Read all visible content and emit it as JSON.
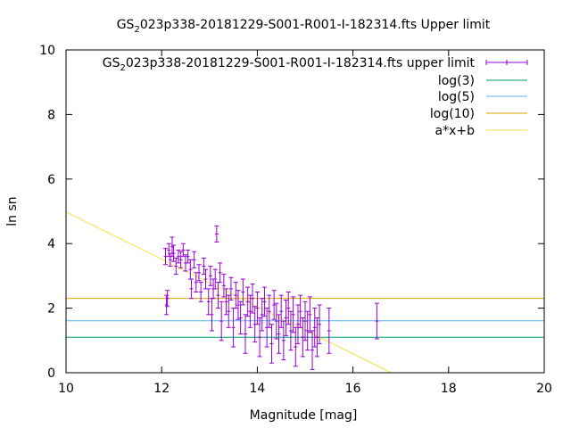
{
  "chart_data": {
    "type": "scatter",
    "title": {
      "main": "GS",
      "subscript": "2",
      "rest": "023p338-20181229-S001-R001-I-182314.fts Upper limit"
    },
    "xlabel": "Magnitude [mag]",
    "ylabel": "ln sn",
    "xlim": [
      10,
      20
    ],
    "ylim": [
      0,
      10
    ],
    "xticks": [
      10,
      12,
      14,
      16,
      18,
      20
    ],
    "yticks": [
      0,
      2,
      4,
      6,
      8,
      10
    ],
    "grid": false,
    "legend_position": "top-right",
    "series": [
      {
        "name": {
          "main": "GS",
          "subscript": "2",
          "rest": "023p338-20181229-S001-R001-I-182314.fts upper limit"
        },
        "style": "points-with-errorbars",
        "color": "#9400d3",
        "points": [
          {
            "x": 12.08,
            "y": 3.6,
            "err": 0.25
          },
          {
            "x": 12.1,
            "y": 2.1,
            "err": 0.3
          },
          {
            "x": 12.12,
            "y": 2.3,
            "err": 0.25
          },
          {
            "x": 12.15,
            "y": 3.8,
            "err": 0.2
          },
          {
            "x": 12.18,
            "y": 3.5,
            "err": 0.2
          },
          {
            "x": 12.22,
            "y": 3.9,
            "err": 0.3
          },
          {
            "x": 12.25,
            "y": 3.7,
            "err": 0.25
          },
          {
            "x": 12.3,
            "y": 3.3,
            "err": 0.25
          },
          {
            "x": 12.35,
            "y": 3.6,
            "err": 0.2
          },
          {
            "x": 12.4,
            "y": 3.5,
            "err": 0.25
          },
          {
            "x": 12.45,
            "y": 3.8,
            "err": 0.2
          },
          {
            "x": 12.5,
            "y": 3.4,
            "err": 0.25
          },
          {
            "x": 12.55,
            "y": 3.6,
            "err": 0.2
          },
          {
            "x": 12.6,
            "y": 3.2,
            "err": 0.3
          },
          {
            "x": 12.62,
            "y": 2.6,
            "err": 0.3
          },
          {
            "x": 12.68,
            "y": 3.5,
            "err": 0.25
          },
          {
            "x": 12.72,
            "y": 2.8,
            "err": 0.3
          },
          {
            "x": 12.78,
            "y": 3.1,
            "err": 0.25
          },
          {
            "x": 12.82,
            "y": 2.5,
            "err": 0.3
          },
          {
            "x": 12.88,
            "y": 3.3,
            "err": 0.25
          },
          {
            "x": 12.92,
            "y": 2.9,
            "err": 0.3
          },
          {
            "x": 12.98,
            "y": 2.2,
            "err": 0.4
          },
          {
            "x": 13.02,
            "y": 3.0,
            "err": 0.3
          },
          {
            "x": 13.05,
            "y": 1.8,
            "err": 0.5
          },
          {
            "x": 13.08,
            "y": 2.6,
            "err": 0.3
          },
          {
            "x": 13.12,
            "y": 2.9,
            "err": 0.3
          },
          {
            "x": 13.15,
            "y": 4.3,
            "err": 0.25
          },
          {
            "x": 13.18,
            "y": 2.4,
            "err": 0.4
          },
          {
            "x": 13.22,
            "y": 3.1,
            "err": 0.3
          },
          {
            "x": 13.25,
            "y": 1.6,
            "err": 0.6
          },
          {
            "x": 13.3,
            "y": 2.7,
            "err": 0.35
          },
          {
            "x": 13.35,
            "y": 2.2,
            "err": 0.4
          },
          {
            "x": 13.4,
            "y": 1.9,
            "err": 0.5
          },
          {
            "x": 13.45,
            "y": 2.6,
            "err": 0.35
          },
          {
            "x": 13.5,
            "y": 1.4,
            "err": 0.6
          },
          {
            "x": 13.55,
            "y": 2.4,
            "err": 0.4
          },
          {
            "x": 13.6,
            "y": 2.1,
            "err": 0.45
          },
          {
            "x": 13.65,
            "y": 1.7,
            "err": 0.5
          },
          {
            "x": 13.7,
            "y": 2.5,
            "err": 0.4
          },
          {
            "x": 13.75,
            "y": 1.2,
            "err": 0.6
          },
          {
            "x": 13.8,
            "y": 2.2,
            "err": 0.45
          },
          {
            "x": 13.85,
            "y": 1.9,
            "err": 0.5
          },
          {
            "x": 13.9,
            "y": 2.3,
            "err": 0.45
          },
          {
            "x": 13.95,
            "y": 1.5,
            "err": 0.55
          },
          {
            "x": 14.0,
            "y": 2.0,
            "err": 0.5
          },
          {
            "x": 14.05,
            "y": 1.1,
            "err": 0.6
          },
          {
            "x": 14.1,
            "y": 1.8,
            "err": 0.5
          },
          {
            "x": 14.15,
            "y": 2.2,
            "err": 0.45
          },
          {
            "x": 14.2,
            "y": 1.4,
            "err": 0.6
          },
          {
            "x": 14.25,
            "y": 1.9,
            "err": 0.5
          },
          {
            "x": 14.3,
            "y": 0.9,
            "err": 0.6
          },
          {
            "x": 14.35,
            "y": 2.1,
            "err": 0.45
          },
          {
            "x": 14.4,
            "y": 1.6,
            "err": 0.55
          },
          {
            "x": 14.45,
            "y": 1.2,
            "err": 0.6
          },
          {
            "x": 14.5,
            "y": 1.9,
            "err": 0.5
          },
          {
            "x": 14.55,
            "y": 1.0,
            "err": 0.6
          },
          {
            "x": 14.6,
            "y": 1.7,
            "err": 0.55
          },
          {
            "x": 14.65,
            "y": 2.0,
            "err": 0.5
          },
          {
            "x": 14.7,
            "y": 1.3,
            "err": 0.6
          },
          {
            "x": 14.75,
            "y": 1.8,
            "err": 0.55
          },
          {
            "x": 14.8,
            "y": 0.8,
            "err": 0.6
          },
          {
            "x": 14.85,
            "y": 1.5,
            "err": 0.6
          },
          {
            "x": 14.9,
            "y": 1.9,
            "err": 0.5
          },
          {
            "x": 14.95,
            "y": 1.1,
            "err": 0.6
          },
          {
            "x": 15.0,
            "y": 1.6,
            "err": 0.6
          },
          {
            "x": 15.05,
            "y": 1.3,
            "err": 0.6
          },
          {
            "x": 15.1,
            "y": 1.8,
            "err": 0.55
          },
          {
            "x": 15.15,
            "y": 0.7,
            "err": 0.6
          },
          {
            "x": 15.2,
            "y": 1.4,
            "err": 0.6
          },
          {
            "x": 15.25,
            "y": 1.1,
            "err": 0.6
          },
          {
            "x": 15.3,
            "y": 1.5,
            "err": 0.6
          },
          {
            "x": 15.5,
            "y": 1.3,
            "err": 0.7
          },
          {
            "x": 16.5,
            "y": 1.6,
            "err": 0.55
          }
        ]
      },
      {
        "name": "log(3)",
        "style": "hline",
        "color": "#009e73",
        "y": 1.0986
      },
      {
        "name": "log(5)",
        "style": "hline",
        "color": "#56b4e9",
        "y": 1.6094
      },
      {
        "name": "log(10)",
        "style": "hline",
        "color": "#e69f00",
        "y": 2.3026
      },
      {
        "name": "a*x+b",
        "style": "line",
        "color": "#f0e442",
        "x": [
          10,
          16.8
        ],
        "y": [
          4.98,
          0
        ]
      }
    ]
  }
}
